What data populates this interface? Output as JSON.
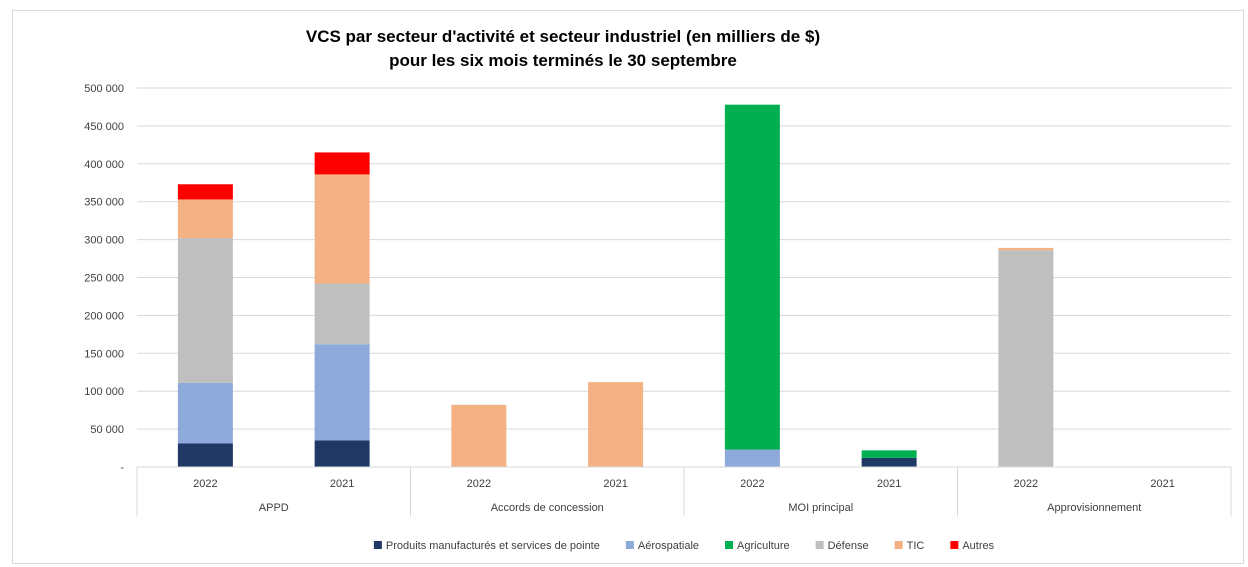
{
  "chart_data": {
    "type": "bar",
    "stacked": true,
    "title_lines": [
      "VCS par secteur d'activité et secteur industriel  (en milliers de $)",
      "pour les six mois terminés le 30 septembre"
    ],
    "xlabel": "",
    "ylabel": "",
    "ylim": [
      0,
      500000
    ],
    "yticks": [
      {
        "value": 0,
        "label": "-"
      },
      {
        "value": 50000,
        "label": "50 000"
      },
      {
        "value": 100000,
        "label": "100 000"
      },
      {
        "value": 150000,
        "label": "150 000"
      },
      {
        "value": 200000,
        "label": "200 000"
      },
      {
        "value": 250000,
        "label": "250 000"
      },
      {
        "value": 300000,
        "label": "300 000"
      },
      {
        "value": 350000,
        "label": "350 000"
      },
      {
        "value": 400000,
        "label": "400 000"
      },
      {
        "value": 450000,
        "label": "450 000"
      },
      {
        "value": 500000,
        "label": "500 000"
      }
    ],
    "grid": true,
    "legend_position": "bottom",
    "groups": [
      {
        "label": "APPD",
        "categories": [
          "2022",
          "2021"
        ]
      },
      {
        "label": "Accords de concession",
        "categories": [
          "2022",
          "2021"
        ]
      },
      {
        "label": "MOI principal",
        "categories": [
          "2022",
          "2021"
        ]
      },
      {
        "label": "Approvisionnement",
        "categories": [
          "2022",
          "2021"
        ]
      }
    ],
    "series": [
      {
        "name": "Produits manufacturés et services de pointe",
        "color": "#1f3864",
        "values": [
          31000,
          35000,
          0,
          0,
          0,
          12000,
          0,
          0
        ]
      },
      {
        "name": "Aérospatiale",
        "color": "#8eaadb",
        "values": [
          80000,
          127000,
          0,
          0,
          23000,
          0,
          0,
          0
        ]
      },
      {
        "name": "Agriculture",
        "color": "#00b050",
        "values": [
          0,
          0,
          0,
          0,
          455000,
          10000,
          0,
          0
        ]
      },
      {
        "name": "Défense",
        "color": "#bfbfbf",
        "values": [
          191000,
          80000,
          0,
          0,
          0,
          0,
          286000,
          0
        ]
      },
      {
        "name": "TIC",
        "color": "#f4b183",
        "values": [
          51000,
          144000,
          82000,
          112000,
          0,
          0,
          3000,
          0
        ]
      },
      {
        "name": "Autres",
        "color": "#ff0000",
        "values": [
          20000,
          29000,
          0,
          0,
          0,
          0,
          0,
          0
        ]
      }
    ]
  }
}
